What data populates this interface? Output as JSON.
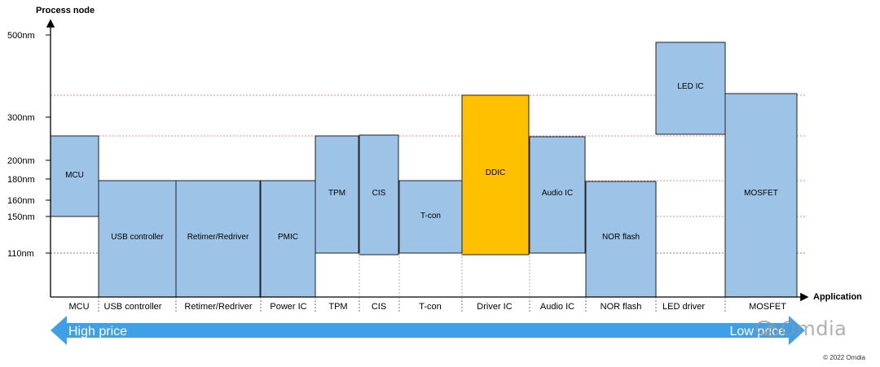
{
  "axes": {
    "y_title": "Process node",
    "x_title": "Application",
    "y_ticks": [
      {
        "label": "500nm",
        "value": 500
      },
      {
        "label": "300nm",
        "value": 300
      },
      {
        "label": "200nm",
        "value": 200
      },
      {
        "label": "180nm",
        "value": 180
      },
      {
        "label": "160nm",
        "value": 160
      },
      {
        "label": "150nm",
        "value": 150
      },
      {
        "label": "110nm",
        "value": 110
      }
    ]
  },
  "categories": [
    {
      "label": "MCU",
      "box_text": "MCU",
      "color": "#9DC3E6"
    },
    {
      "label": "USB controller",
      "box_text": "USB controller",
      "color": "#9DC3E6"
    },
    {
      "label": "Retimer/Redriver",
      "box_text": "Retimer/Redriver",
      "color": "#9DC3E6"
    },
    {
      "label": "Power IC",
      "box_text": "PMIC",
      "color": "#9DC3E6"
    },
    {
      "label": "TPM",
      "box_text": "TPM",
      "color": "#9DC3E6"
    },
    {
      "label": "CIS",
      "box_text": "CIS",
      "color": "#9DC3E6"
    },
    {
      "label": "T-con",
      "box_text": "T-con",
      "color": "#9DC3E6"
    },
    {
      "label": "Driver IC",
      "box_text": "DDIC",
      "color": "#FFC000"
    },
    {
      "label": "Audio IC",
      "box_text": "Audio IC",
      "color": "#9DC3E6"
    },
    {
      "label": "NOR flash",
      "box_text": "NOR flash",
      "color": "#9DC3E6"
    },
    {
      "label": "LED driver",
      "box_text": "LED IC",
      "color": "#9DC3E6"
    },
    {
      "label": "MOSFET",
      "box_text": "MOSFET",
      "color": "#9DC3E6"
    }
  ],
  "price_arrow": {
    "left_label": "High price",
    "right_label": "Low price",
    "color": "#3FA0E8"
  },
  "watermark": "Omdia",
  "copyright": "© 2022 Omdia"
}
